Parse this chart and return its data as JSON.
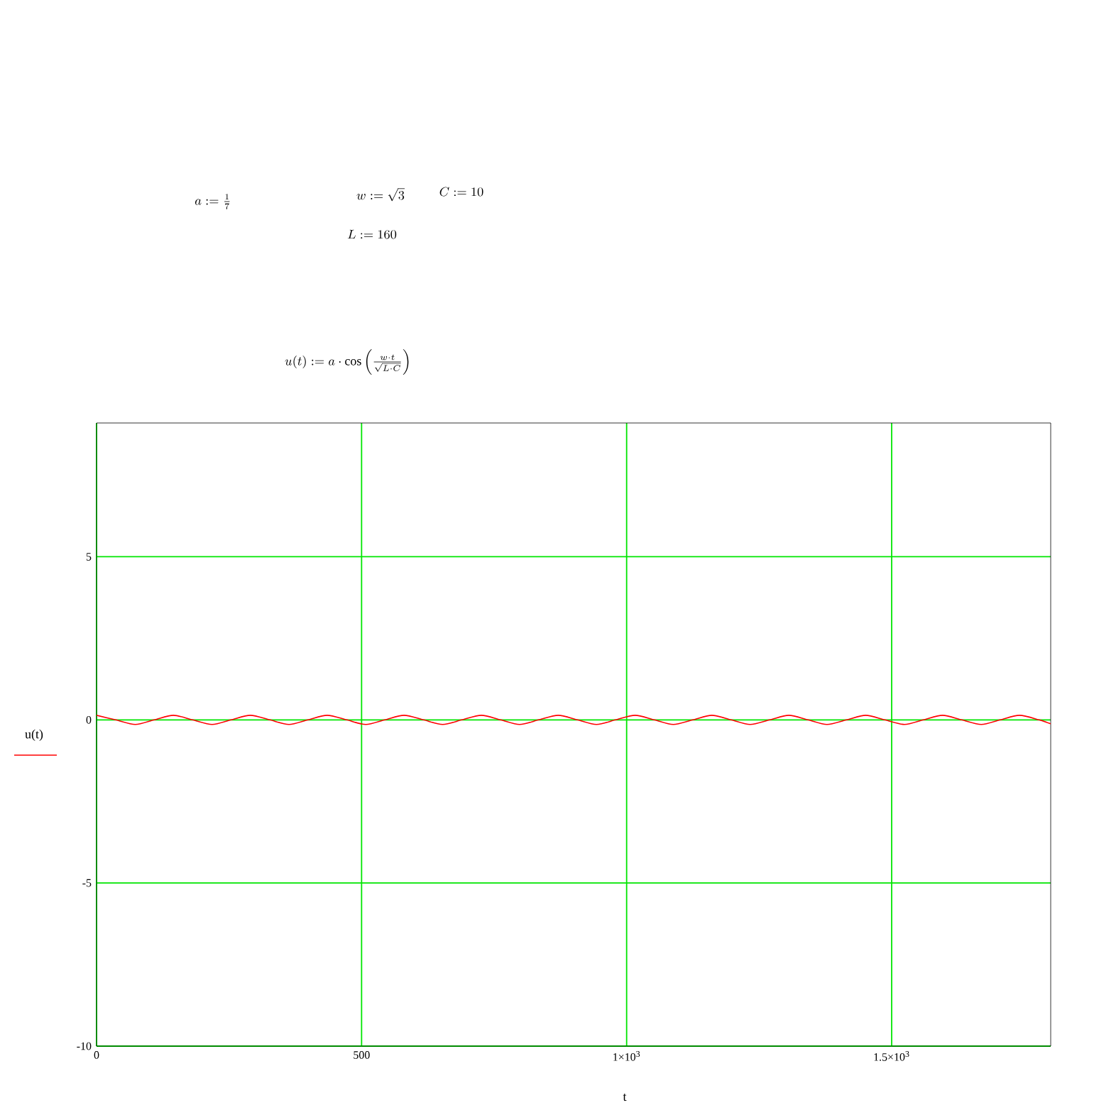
{
  "chart_data": {
    "type": "line",
    "xlabel": "t",
    "ylabel": "u(t)",
    "annotations": [
      "a := \\frac{1}{7}",
      "w := \\sqrt{3}",
      "C := 10",
      "L := 160",
      "u(t) := a \\cdot \\cos\\left(\\frac{w \\cdot t}{\\sqrt{L \\cdot C}}\\right)"
    ],
    "x": [
      0,
      36,
      73,
      109,
      145,
      181,
      218,
      254,
      290,
      327,
      363,
      399,
      435,
      472,
      508,
      544,
      580,
      617,
      653,
      689,
      726,
      762,
      798,
      834,
      871,
      907,
      943,
      979,
      1016,
      1052,
      1088,
      1125,
      1161,
      1197,
      1233,
      1270,
      1306,
      1342,
      1378,
      1415,
      1451,
      1487,
      1524,
      1560,
      1596,
      1632,
      1669,
      1705,
      1741,
      1778,
      1800
    ],
    "series": [
      {
        "color": "#ff0000",
        "values": [
          0.14,
          0,
          -0.14,
          0,
          0.14,
          0,
          -0.14,
          0,
          0.14,
          0,
          -0.14,
          0,
          0.14,
          0,
          -0.14,
          0,
          0.14,
          0,
          -0.14,
          0,
          0.14,
          0,
          -0.14,
          0,
          0.14,
          0,
          -0.14,
          0,
          0.14,
          0,
          -0.14,
          0,
          0.14,
          0,
          -0.14,
          0,
          0.14,
          0,
          -0.14,
          0,
          0.14,
          0,
          -0.14,
          0,
          0.14,
          0,
          -0.14,
          0,
          0.14,
          0,
          -0.12
        ]
      }
    ],
    "xlim": [
      0,
      1800
    ],
    "ylim": [
      -10,
      9.1
    ],
    "xticks": [
      0,
      500,
      {
        "value": 1000,
        "label": "1×10$^{3}$"
      },
      {
        "value": 1500,
        "label": "1.5×10$^{3}$"
      }
    ],
    "yticks": [
      -10,
      -5,
      0,
      5
    ],
    "grid": true,
    "marker": "none",
    "line_style": "solid"
  }
}
